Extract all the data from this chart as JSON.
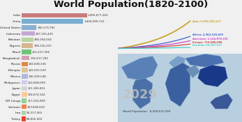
{
  "title": "World Population(1820-2100)",
  "year": "2029",
  "world_population": "World Population:  8,504,631,099",
  "bars": [
    {
      "country": "India",
      "value": 1495677262,
      "color": "#c97b7b"
    },
    {
      "country": "China",
      "value": 1404099722,
      "color": "#7aadcf"
    },
    {
      "country": "United States",
      "value": 340179781,
      "color": "#8aafd4"
    },
    {
      "country": "Indonesia",
      "value": 297155429,
      "color": "#c4a8d4"
    },
    {
      "country": "Pakistan",
      "value": 268394504,
      "color": "#b8d4a0"
    },
    {
      "country": "Nigeria",
      "value": 258116215,
      "color": "#d4b890"
    },
    {
      "country": "Brazil",
      "value": 223227356,
      "color": "#70c478"
    },
    {
      "country": "Bangladesh",
      "value": 178237782,
      "color": "#d4a0b8"
    },
    {
      "country": "Russia",
      "value": 143608336,
      "color": "#e08840"
    },
    {
      "country": "Ethiopia",
      "value": 143022029,
      "color": "#e0c498"
    },
    {
      "country": "Mexico",
      "value": 140209548,
      "color": "#b0b8dc"
    },
    {
      "country": "Philippines",
      "value": 122858099,
      "color": "#d0d0ec"
    },
    {
      "country": "Japan",
      "value": 121185815,
      "color": "#d4d4d4"
    },
    {
      "country": "Egypt",
      "value": 118674144,
      "color": "#fdc898"
    },
    {
      "country": "DR Congo",
      "value": 117065899,
      "color": "#90d490"
    },
    {
      "country": "Vietnam",
      "value": 103838834,
      "color": "#f08050"
    },
    {
      "country": "Iran",
      "value": 92217565,
      "color": "#a8d4a8"
    },
    {
      "country": "Turkey",
      "value": 88826450,
      "color": "#e84030"
    }
  ],
  "lines": [
    {
      "label": "Asia: 5,356,103,117",
      "color": "#c8a020"
    },
    {
      "label": "Africa: 2,302,120,429",
      "color": "#4060cc"
    },
    {
      "label": "Americas: 1,124,879,335",
      "color": "#cc44cc"
    },
    {
      "label": "Europe: 714,080,086",
      "color": "#cc4444"
    },
    {
      "label": "Oceania: 55,357,517",
      "color": "#40cccc"
    }
  ],
  "bg_color": "#f0f0f0",
  "title_color": "#111111",
  "title_fontsize": 9.5,
  "bar_label_fontsize": 3.0,
  "country_label_fontsize": 3.2,
  "year_color": "#bbbbbb",
  "wp_color": "#333333"
}
